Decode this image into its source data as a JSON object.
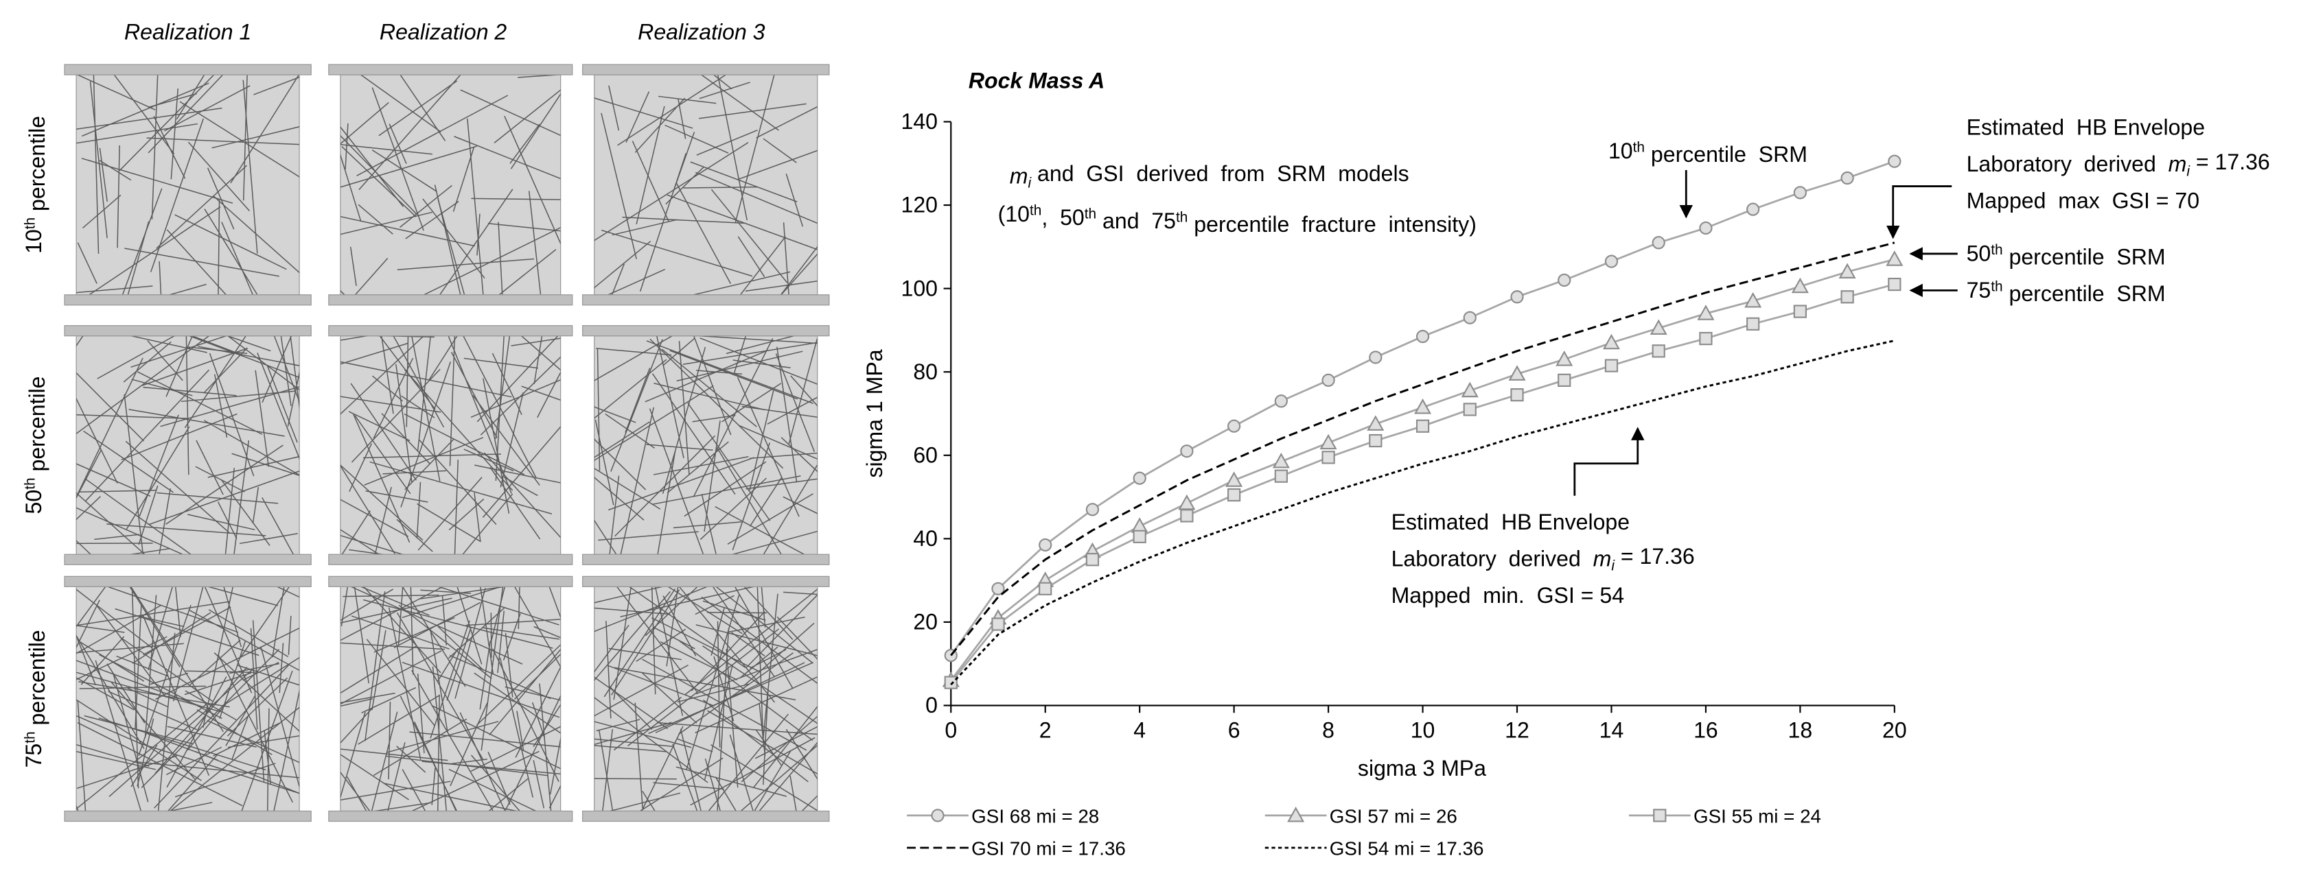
{
  "fracture_panels": {
    "columns": [
      "Realization 1",
      "Realization 2",
      "Realization 3"
    ],
    "rows": [
      [
        "10",
        {
          "sup": "th"
        },
        " percentile"
      ],
      [
        "50",
        {
          "sup": "th"
        },
        " percentile"
      ],
      [
        "75",
        {
          "sup": "th"
        },
        " percentile"
      ]
    ]
  },
  "chart_data": {
    "type": "line",
    "title": "Rock Mass A",
    "x_label": "sigma 3 MPa",
    "y_label": "sigma 1 MPa",
    "x": [
      0,
      1,
      2,
      3,
      4,
      5,
      6,
      7,
      8,
      9,
      10,
      11,
      12,
      13,
      14,
      15,
      16,
      17,
      18,
      19,
      20
    ],
    "xlim": [
      0,
      20
    ],
    "xticks": [
      0,
      2,
      4,
      6,
      8,
      10,
      12,
      14,
      16,
      18,
      20
    ],
    "ylim": [
      0,
      140
    ],
    "yticks": [
      0,
      20,
      40,
      60,
      80,
      100,
      120,
      140
    ],
    "grid": false,
    "series": [
      {
        "name": "GSI 68 mi = 28",
        "color": "#a6a6a6",
        "marker": "circle",
        "dash": "solid",
        "values": [
          12,
          28,
          38.5,
          47,
          54.5,
          61,
          67,
          73,
          78,
          83.5,
          88.5,
          93,
          98,
          102,
          106.5,
          111,
          114.5,
          119,
          123,
          126.5,
          130.5
        ]
      },
      {
        "name": "GSI 57 mi = 26",
        "color": "#a6a6a6",
        "marker": "triangle",
        "dash": "solid",
        "values": [
          6,
          21,
          30,
          37,
          43,
          48.5,
          54,
          58.5,
          63,
          67.5,
          71.5,
          75.5,
          79.5,
          83,
          87,
          90.5,
          94,
          97,
          100.5,
          104,
          107
        ]
      },
      {
        "name": "GSI 55 mi = 24",
        "color": "#a6a6a6",
        "marker": "square",
        "dash": "solid",
        "values": [
          5.5,
          19.5,
          28,
          35,
          40.5,
          45.5,
          50.5,
          55,
          59.5,
          63.5,
          67,
          71,
          74.5,
          78,
          81.5,
          85,
          88,
          91.5,
          94.5,
          98,
          101
        ]
      },
      {
        "name": "GSI 70 mi = 17.36",
        "color": "#000000",
        "marker": "none",
        "dash": "dashed",
        "values": [
          12,
          26,
          35,
          42,
          48,
          54,
          59,
          64,
          68.5,
          73,
          77,
          81,
          85,
          88.5,
          92,
          95.5,
          99,
          102,
          105,
          108,
          111
        ]
      },
      {
        "name": "GSI 54 mi = 17.36",
        "color": "#000000",
        "marker": "none",
        "dash": "dotted",
        "values": [
          5,
          17,
          24,
          29.5,
          34.5,
          39,
          43,
          47,
          51,
          54.5,
          58,
          61,
          64.5,
          67.5,
          70.5,
          73.5,
          76.5,
          79,
          82,
          85,
          87.5
        ]
      }
    ],
    "annotations": [
      {
        "lines": [
          [
            {
              "italic": "m"
            },
            {
              "sub": "i"
            },
            " and  GSI  derived  from  SRM  models"
          ],
          [
            "(10",
            {
              "sup": "th"
            },
            ",  50",
            {
              "sup": "th"
            },
            " and  75",
            {
              "sup": "th"
            },
            " percentile  fracture  intensity)"
          ]
        ]
      },
      {
        "lines": [
          [
            "10",
            {
              "sup": "th"
            },
            " percentile  SRM"
          ]
        ]
      },
      {
        "lines": [
          [
            "Estimated  HB Envelope"
          ],
          [
            "Laboratory  derived  ",
            {
              "italic": "m"
            },
            {
              "sub": "i"
            },
            " = 17.36"
          ],
          [
            "Mapped  max  GSI = 70"
          ]
        ]
      },
      {
        "lines": [
          [
            "50",
            {
              "sup": "th"
            },
            " percentile  SRM"
          ]
        ]
      },
      {
        "lines": [
          [
            "75",
            {
              "sup": "th"
            },
            " percentile  SRM"
          ]
        ]
      },
      {
        "lines": [
          [
            "Estimated  HB Envelope"
          ],
          [
            "Laboratory  derived  ",
            {
              "italic": "m"
            },
            {
              "sub": "i"
            },
            " = 17.36"
          ],
          [
            "Mapped  min.  GSI = 54"
          ]
        ]
      }
    ]
  }
}
